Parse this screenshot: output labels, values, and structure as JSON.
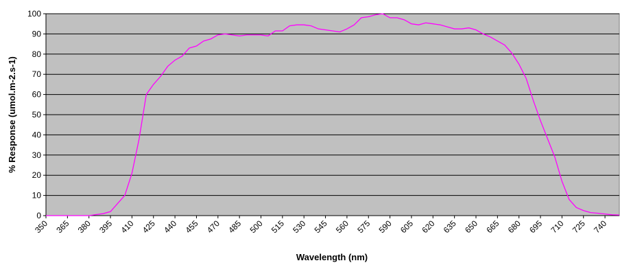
{
  "chart_data": {
    "type": "line",
    "xlabel": "Wavelength (nm)",
    "ylabel": "% Response (umol.m-2.s-1)",
    "x": [
      350,
      355,
      360,
      365,
      370,
      375,
      380,
      385,
      390,
      395,
      400,
      405,
      410,
      415,
      420,
      425,
      430,
      435,
      440,
      445,
      450,
      455,
      460,
      465,
      470,
      475,
      480,
      485,
      490,
      495,
      500,
      505,
      510,
      515,
      520,
      525,
      530,
      535,
      540,
      545,
      550,
      555,
      560,
      565,
      570,
      575,
      580,
      585,
      590,
      595,
      600,
      605,
      610,
      615,
      620,
      625,
      630,
      635,
      640,
      645,
      650,
      655,
      660,
      665,
      670,
      675,
      680,
      685,
      690,
      695,
      700,
      705,
      710,
      715,
      720,
      725,
      730,
      735,
      740,
      745,
      750
    ],
    "values": [
      0,
      0,
      0,
      0,
      0,
      0,
      0,
      0.5,
      1,
      2,
      6,
      10,
      21,
      38,
      60,
      65,
      69,
      74,
      77,
      79,
      83,
      84,
      86.5,
      87.5,
      89.5,
      90,
      89.5,
      89,
      89.5,
      89.5,
      89.5,
      89,
      91.5,
      91.5,
      94,
      94.5,
      94.5,
      94,
      92.5,
      92,
      91.5,
      91,
      92.5,
      94.5,
      98,
      98.5,
      99.5,
      100,
      98,
      98,
      97,
      95,
      94.5,
      95.5,
      95,
      94.5,
      93.5,
      92.5,
      92.5,
      93,
      92,
      90,
      88.5,
      86.5,
      84.5,
      80.5,
      75,
      68,
      57,
      47,
      38,
      29,
      17,
      8,
      4,
      2.5,
      1.5,
      1.2,
      0.8,
      0.4,
      0.3
    ],
    "color": "#ff00ff",
    "xlim": [
      350,
      750
    ],
    "xticks": [
      350,
      365,
      380,
      395,
      410,
      425,
      440,
      455,
      470,
      485,
      500,
      515,
      530,
      545,
      560,
      575,
      590,
      605,
      620,
      635,
      650,
      665,
      680,
      695,
      710,
      725,
      740
    ],
    "ylim": [
      0,
      100
    ],
    "yticks": [
      0,
      10,
      20,
      30,
      40,
      50,
      60,
      70,
      80,
      90,
      100
    ],
    "grid": true,
    "background": "#c0c0c0"
  }
}
